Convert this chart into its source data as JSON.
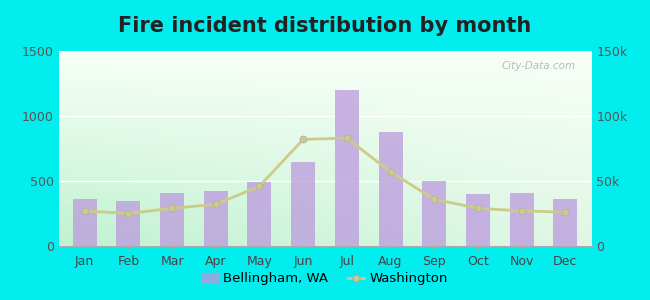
{
  "title": "Fire incident distribution by month",
  "months": [
    "Jan",
    "Feb",
    "Mar",
    "Apr",
    "May",
    "Jun",
    "Jul",
    "Aug",
    "Sep",
    "Oct",
    "Nov",
    "Dec"
  ],
  "bellingham_values": [
    360,
    350,
    405,
    425,
    490,
    650,
    1200,
    880,
    500,
    400,
    410,
    365
  ],
  "washington_values": [
    27000,
    25000,
    29000,
    32000,
    46000,
    82000,
    83000,
    57000,
    36000,
    29000,
    27000,
    26000
  ],
  "bar_color": "#bb99dd",
  "bar_alpha": 0.75,
  "line_color": "#cccc88",
  "line_marker": "o",
  "line_marker_color": "#cccc88",
  "left_ylim": [
    0,
    1500
  ],
  "left_yticks": [
    0,
    500,
    1000,
    1500
  ],
  "right_ylim": [
    0,
    150000
  ],
  "right_yticks": [
    0,
    50000,
    100000,
    150000
  ],
  "right_yticklabels": [
    "0",
    "50k",
    "100k",
    "150k"
  ],
  "outer_bg": "#00eeee",
  "title_fontsize": 15,
  "tick_fontsize": 9,
  "legend_bellingham": "Bellingham, WA",
  "legend_washington": "Washington",
  "watermark": "City-Data.com"
}
